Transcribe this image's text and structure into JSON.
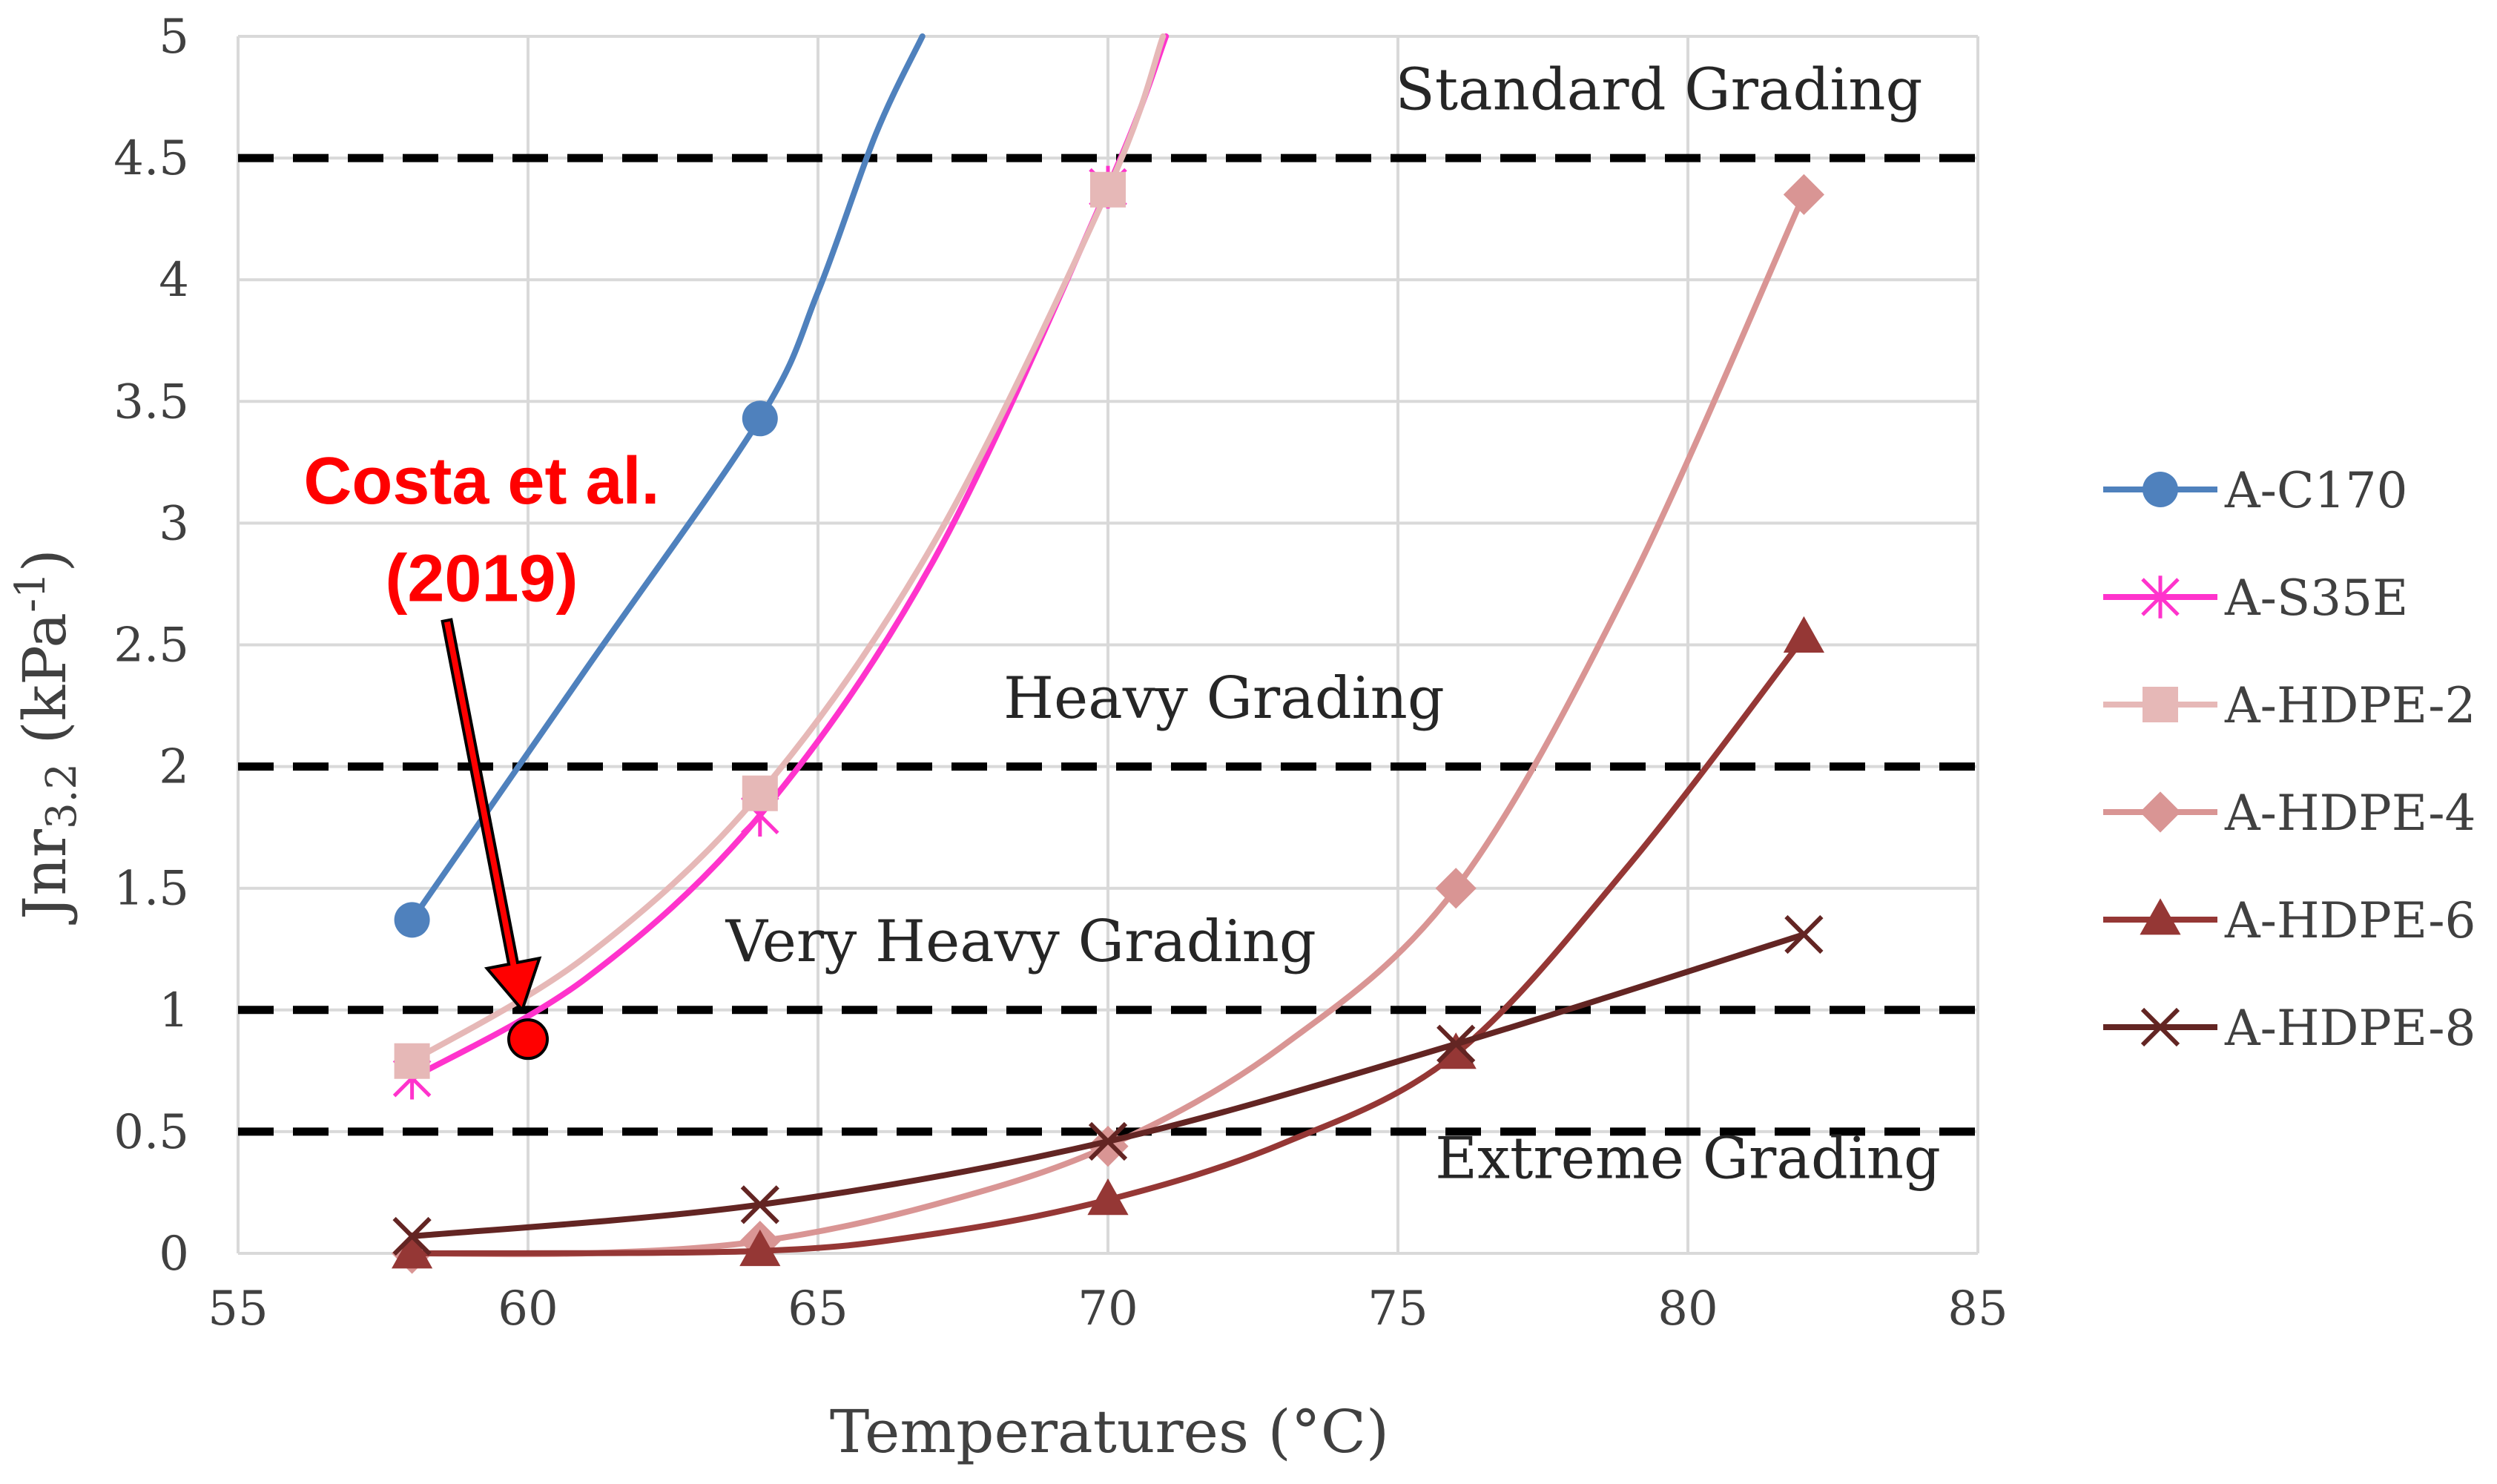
{
  "chart_data": {
    "type": "line",
    "title": "",
    "xlabel": "Temperatures (°C)",
    "ylabel": {
      "main": "Jnr",
      "sub": "3.2",
      "unit_prefix": " (kPa",
      "unit_sup": "-1",
      "unit_suffix": ")"
    },
    "xlim": [
      55,
      85
    ],
    "ylim": [
      0,
      5
    ],
    "x_ticks": [
      55,
      60,
      65,
      70,
      75,
      80,
      85
    ],
    "y_ticks": [
      0,
      0.5,
      1,
      1.5,
      2,
      2.5,
      3,
      3.5,
      4,
      4.5,
      5
    ],
    "y_tick_labels": [
      "0",
      "0.5",
      "1",
      "1.5",
      "2",
      "2.5",
      "3",
      "3.5",
      "4",
      "4.5",
      "5"
    ],
    "grid": true,
    "legend_position": "right",
    "series": [
      {
        "name": "A-C170",
        "color": "#4f81bd",
        "marker": "circle",
        "x": [
          58,
          64
        ],
        "values": [
          1.37,
          3.43
        ],
        "curve": [
          [
            58,
            1.37
          ],
          [
            61,
            2.4
          ],
          [
            64,
            3.43
          ],
          [
            65,
            3.95
          ],
          [
            66,
            4.6
          ],
          [
            66.8,
            5.0
          ]
        ]
      },
      {
        "name": "A-S35E",
        "color": "#ff33cc",
        "marker": "asterisk",
        "x": [
          58,
          64,
          70
        ],
        "values": [
          0.72,
          1.8,
          4.38
        ],
        "curve": [
          [
            58,
            0.72
          ],
          [
            61,
            1.13
          ],
          [
            64,
            1.8
          ],
          [
            67,
            2.85
          ],
          [
            70,
            4.38
          ],
          [
            71,
            5.0
          ]
        ]
      },
      {
        "name": "A-HDPE-2",
        "color": "#e6b8b7",
        "marker": "square",
        "x": [
          58,
          64,
          70
        ],
        "values": [
          0.79,
          1.89,
          4.37
        ],
        "curve": [
          [
            58,
            0.79
          ],
          [
            61,
            1.22
          ],
          [
            64,
            1.89
          ],
          [
            67,
            2.92
          ],
          [
            70,
            4.37
          ],
          [
            70.95,
            5.0
          ]
        ]
      },
      {
        "name": "A-HDPE-4",
        "color": "#d99594",
        "marker": "diamond",
        "x": [
          58,
          64,
          70,
          76,
          82
        ],
        "values": [
          0.0,
          0.05,
          0.44,
          1.5,
          4.35
        ],
        "curve": [
          [
            58,
            0.0
          ],
          [
            61,
            0.0
          ],
          [
            64,
            0.05
          ],
          [
            67,
            0.2
          ],
          [
            70,
            0.44
          ],
          [
            73,
            0.85
          ],
          [
            76,
            1.5
          ],
          [
            79,
            2.75
          ],
          [
            82,
            4.35
          ]
        ]
      },
      {
        "name": "A-HDPE-6",
        "color": "#953735",
        "marker": "triangle",
        "x": [
          58,
          64,
          70,
          76,
          82
        ],
        "values": [
          0.0,
          0.01,
          0.22,
          0.82,
          2.53
        ],
        "curve": [
          [
            58,
            0.0
          ],
          [
            64,
            0.01
          ],
          [
            67,
            0.08
          ],
          [
            70,
            0.22
          ],
          [
            73,
            0.45
          ],
          [
            76,
            0.82
          ],
          [
            79,
            1.6
          ],
          [
            82,
            2.53
          ]
        ]
      },
      {
        "name": "A-HDPE-8",
        "color": "#632523",
        "marker": "x",
        "x": [
          58,
          64,
          70,
          76,
          82
        ],
        "values": [
          0.07,
          0.2,
          0.46,
          0.86,
          1.31
        ],
        "curve": [
          [
            58,
            0.07
          ],
          [
            64,
            0.2
          ],
          [
            70,
            0.46
          ],
          [
            76,
            0.86
          ],
          [
            82,
            1.31
          ]
        ]
      }
    ],
    "reference_lines": [
      {
        "y": 4.5,
        "label": "Standard Grading",
        "label_x": 79.5,
        "label_y": 4.7
      },
      {
        "y": 2.0,
        "label": "Heavy Grading",
        "label_x": 72.0,
        "label_y": 2.2
      },
      {
        "y": 1.0,
        "label": "Very Heavy Grading",
        "label_x": 68.5,
        "label_y": 1.2
      },
      {
        "y": 0.5,
        "label": "Extreme Grading",
        "label_x": 80.0,
        "label_y": 0.31
      }
    ],
    "annotation": {
      "lines": [
        "Costa et al.",
        "(2019)"
      ],
      "point": {
        "x": 60,
        "y": 0.88
      },
      "color": "#ff0000",
      "text_anchor_x": 59.2,
      "text_line1_y": 3.08,
      "text_line2_y": 2.68,
      "arrow_from": [
        58.6,
        2.6
      ],
      "arrow_to": [
        59.9,
        1.0
      ]
    }
  }
}
